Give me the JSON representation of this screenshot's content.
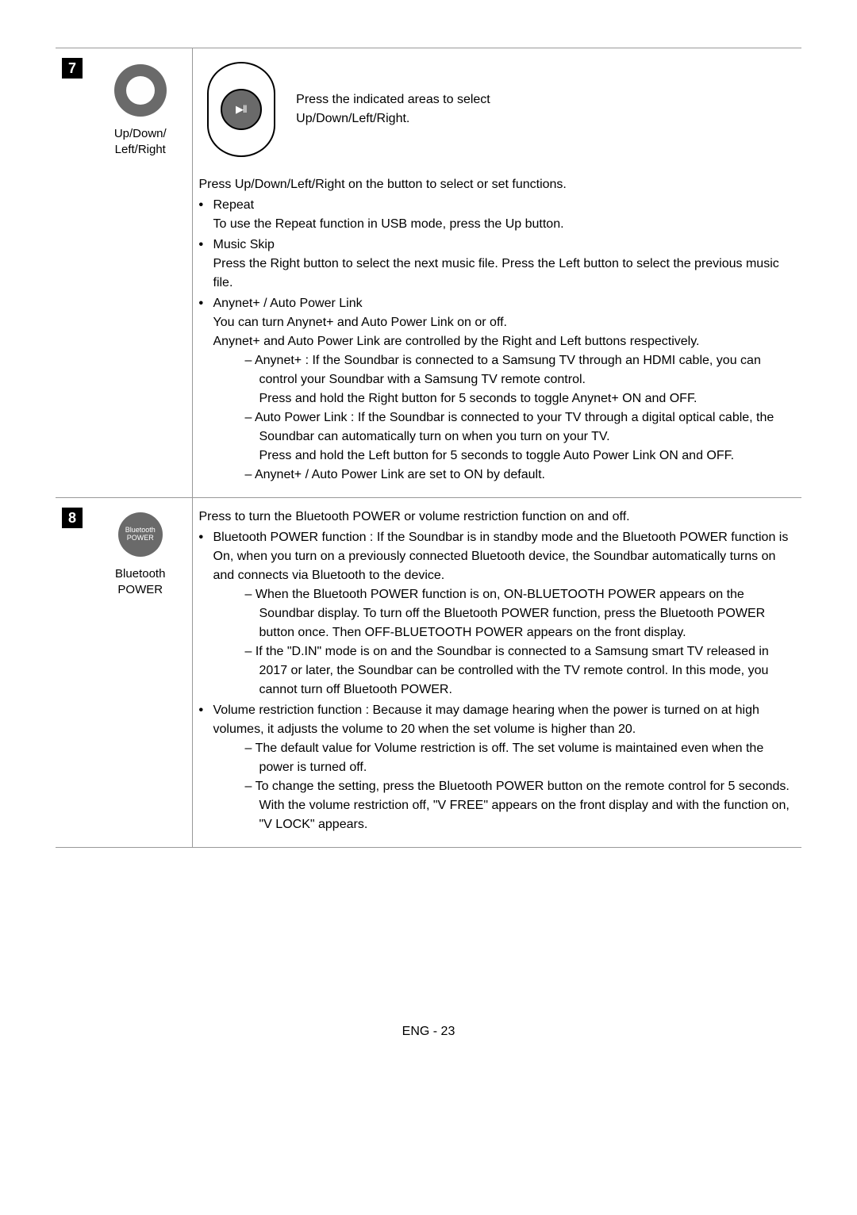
{
  "rows": {
    "seven": {
      "num": "7",
      "icon_label": "Up/Down/\nLeft/Right",
      "oblong_caption": "Press the indicated areas to select Up/Down/Left/Right.",
      "intro": "Press Up/Down/Left/Right on the button to select or set functions.",
      "repeat_title": "Repeat",
      "repeat_body": "To use the Repeat function in USB mode, press the Up button.",
      "musicskip_title": "Music Skip",
      "musicskip_line1": "Press the Right button to select the next music file. Press the Left button to select the previous music file.",
      "anynet_title": "Anynet+ / Auto Power Link",
      "anynet_l1": "You can turn Anynet+ and Auto Power Link on or off.",
      "anynet_l2": "Anynet+ and Auto Power Link are controlled by the Right and Left buttons respectively.",
      "anynet_sub1": "Anynet+ : If the Soundbar is connected to a Samsung TV through an HDMI cable, you can control your Soundbar with a Samsung TV remote control.\nPress and hold the Right button for 5 seconds to toggle Anynet+ ON and OFF.",
      "anynet_sub2": "Auto Power Link : If the Soundbar is connected to your TV through a digital optical cable, the Soundbar can automatically turn on when you turn on your TV.\nPress and hold the Left button for 5 seconds to toggle Auto Power Link ON and OFF.",
      "anynet_sub3": "Anynet+ / Auto Power Link are set to ON by default."
    },
    "eight": {
      "num": "8",
      "bt_circle_text": "Bluetooth\nPOWER",
      "icon_label": "Bluetooth\nPOWER",
      "intro": "Press to turn the Bluetooth POWER or volume restriction function on and off.",
      "bullet1_title": "Bluetooth POWER function",
      "bullet1_body": " : If the Soundbar is in standby mode and the Bluetooth POWER function is On, when you turn on a previously connected Bluetooth device, the Soundbar automatically turns on and connects via Bluetooth to the device.",
      "bullet1_sub1": "When the Bluetooth POWER function is on, ON-BLUETOOTH POWER appears on the Soundbar display. To turn off the Bluetooth POWER function, press the Bluetooth POWER button once. Then OFF-BLUETOOTH POWER appears on the front display.",
      "bullet1_sub2": "If the \"D.IN\" mode is on and the Soundbar is connected to a Samsung smart TV released in 2017 or later, the Soundbar can be controlled with the TV remote control. In this mode, you cannot turn off Bluetooth POWER.",
      "bullet2_title": "Volume restriction function",
      "bullet2_body": " : Because it may damage hearing when the power is turned on at high volumes, it adjusts the volume to 20 when the set volume is higher than 20.",
      "bullet2_sub1": "The default value for Volume restriction is off. The set volume is maintained even when the power is turned off.",
      "bullet2_sub2": "To change the setting, press the Bluetooth POWER button on the remote control for 5 seconds. With the volume restriction off, \"V FREE\" appears on the front display and with the function on, \"V LOCK\" appears."
    }
  },
  "footer": "ENG - 23"
}
